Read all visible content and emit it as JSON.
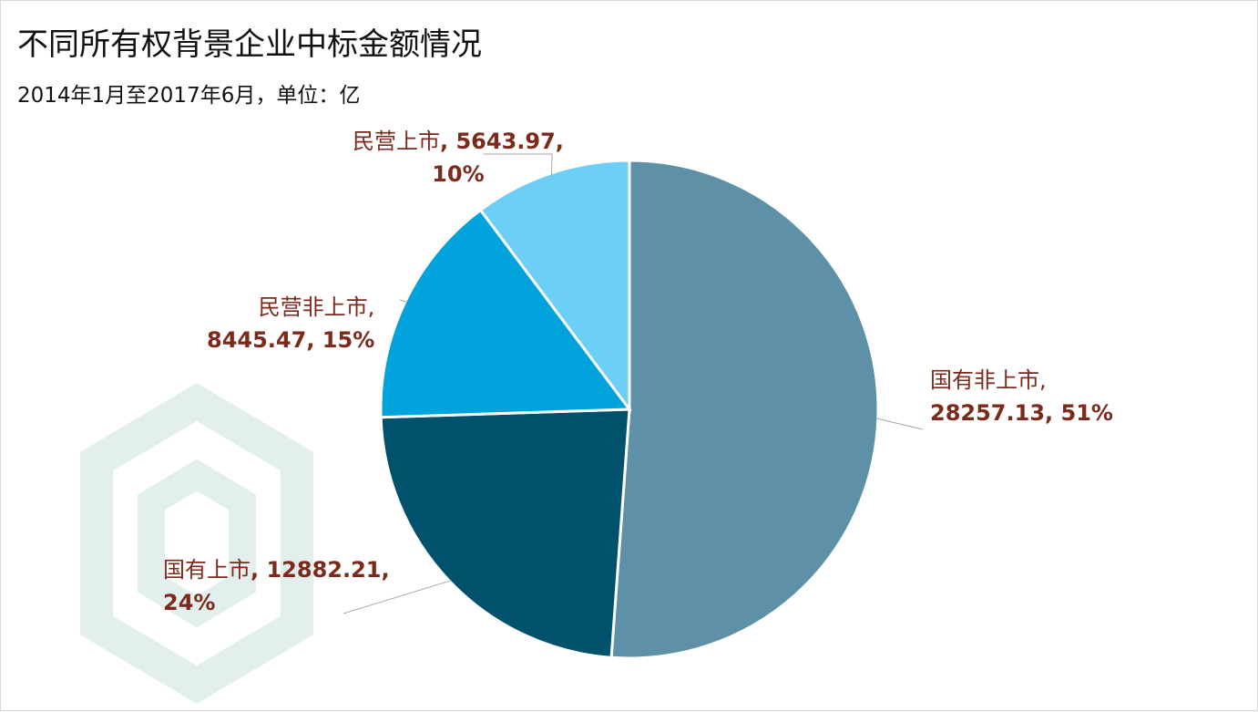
{
  "title": "不同所有权背景企业中标金额情况",
  "subtitle": "2014年1月至2017年6月，单位：亿",
  "colors": {
    "label_text": "#7b2a1c",
    "leader_line": "#a6a6a6",
    "watermark": "#e3efec"
  },
  "chart_data": {
    "type": "pie",
    "title": "不同所有权背景企业中标金额情况",
    "subtitle": "2014年1月至2017年6月，单位：亿",
    "unit": "亿",
    "start_angle": "12 o'clock",
    "direction": "clockwise",
    "legend": "none",
    "slices": [
      {
        "label": "国有非上市",
        "value": 28257.13,
        "value_text": "28257.13",
        "percent": "51%",
        "color": "#5e90a8"
      },
      {
        "label": "国有上市",
        "value": 12882.21,
        "value_text": "12882.21",
        "percent": "24%",
        "color": "#00516c"
      },
      {
        "label": "民营非上市",
        "value": 8445.47,
        "value_text": "8445.47",
        "percent": "15%",
        "color": "#00a3dc"
      },
      {
        "label": "民营上市",
        "value": 5643.97,
        "value_text": "5643.97",
        "percent": "10%",
        "color": "#6dcff6"
      }
    ]
  }
}
